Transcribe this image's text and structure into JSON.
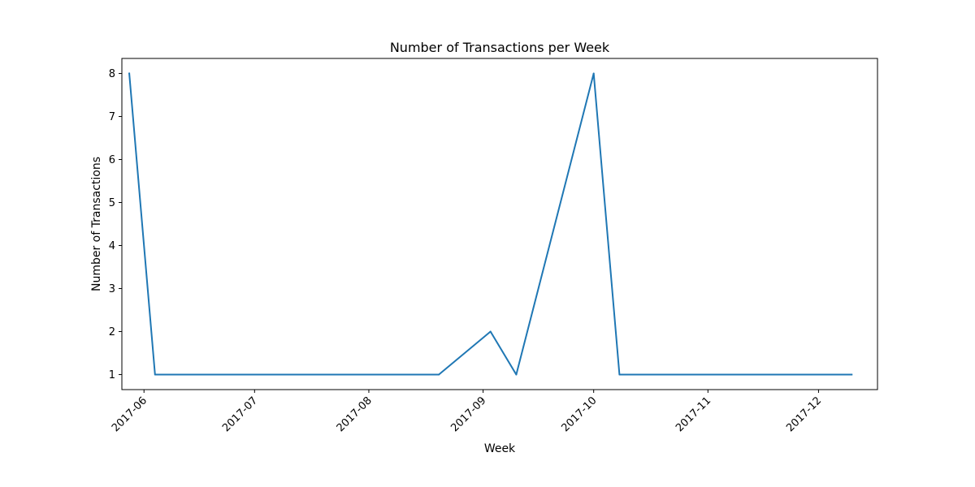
{
  "chart_data": {
    "type": "line",
    "title": "Number of Transactions per Week",
    "xlabel": "Week",
    "ylabel": "Number of Transactions",
    "x_tick_labels": [
      "2017-06",
      "2017-07",
      "2017-08",
      "2017-09",
      "2017-10",
      "2017-11",
      "2017-12"
    ],
    "y_ticks": [
      1,
      2,
      3,
      4,
      5,
      6,
      7,
      8
    ],
    "xlim": [
      "2017-05-26",
      "2017-12-17"
    ],
    "ylim": [
      0.65,
      8.35
    ],
    "grid": false,
    "series": [
      {
        "color": "#1f77b4",
        "x": [
          "2017-05-28",
          "2017-06-04",
          "2017-08-20",
          "2017-09-03",
          "2017-09-10",
          "2017-10-01",
          "2017-10-08",
          "2017-12-10"
        ],
        "values": [
          8,
          1,
          1,
          2,
          1,
          8,
          1,
          1
        ]
      }
    ]
  }
}
